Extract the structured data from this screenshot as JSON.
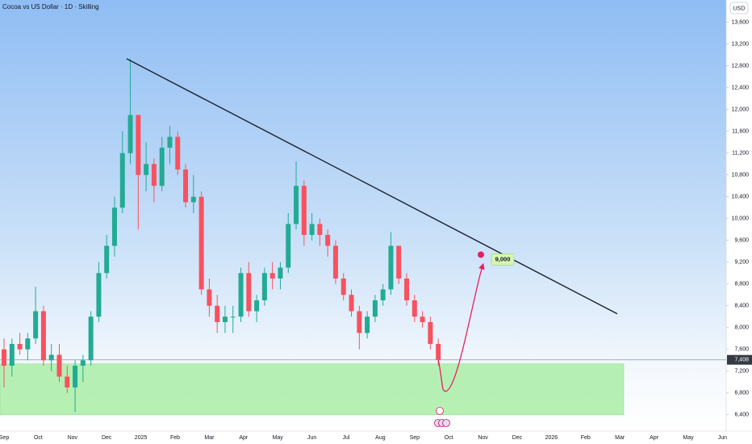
{
  "chart_data": {
    "type": "candlestick",
    "title": "Cocoa vs US Dollar · 1D · Skilling",
    "currency": "USD",
    "x_axis_labels": [
      "Sep",
      "Oct",
      "Nov",
      "Dec",
      "2025",
      "Feb",
      "Mar",
      "Apr",
      "May",
      "Jun",
      "Jul",
      "Aug",
      "Sep",
      "Oct",
      "Nov",
      "Dec",
      "2026",
      "Feb",
      "Mar",
      "Apr",
      "May",
      "Jun"
    ],
    "open": [
      7600,
      7300,
      7700,
      7600,
      7800,
      8300,
      7400,
      7500,
      7100,
      6900,
      7300,
      7400,
      8200,
      9000,
      9500,
      10200,
      11200,
      11900,
      10800,
      11000,
      10600,
      11300,
      11500,
      10900,
      10300,
      10400,
      8700,
      8400,
      8100,
      8200,
      8200,
      9000,
      8300,
      8500,
      9000,
      8900,
      9100,
      9900,
      10600,
      9700,
      9900,
      9700,
      9500,
      8900,
      8600,
      8300,
      7900,
      8200,
      8500,
      8700,
      9500,
      8900,
      8500,
      8200,
      8100,
      7700
    ],
    "high": [
      7800,
      7800,
      7900,
      7900,
      8750,
      8400,
      7700,
      7700,
      7300,
      7400,
      7500,
      8300,
      9200,
      9700,
      10400,
      11600,
      12930,
      11900,
      11400,
      11100,
      11500,
      11700,
      11600,
      11000,
      10800,
      10500,
      8900,
      8600,
      8400,
      8400,
      9100,
      9200,
      8600,
      9100,
      9200,
      9200,
      10100,
      11050,
      10700,
      10100,
      10000,
      9800,
      9600,
      9000,
      8700,
      8400,
      8300,
      8600,
      8800,
      9750,
      9500,
      9000,
      8600,
      8300,
      8200,
      7800
    ],
    "low": [
      6900,
      7100,
      7500,
      7400,
      7700,
      7300,
      7200,
      7000,
      6800,
      6450,
      7000,
      7300,
      8100,
      8900,
      9300,
      10100,
      11000,
      9800,
      10500,
      10300,
      10500,
      11000,
      10800,
      10200,
      10100,
      8600,
      8200,
      7900,
      7900,
      7900,
      8100,
      8200,
      8100,
      8400,
      8700,
      8700,
      9000,
      9800,
      9500,
      9600,
      9500,
      9300,
      8800,
      8500,
      8200,
      7600,
      7800,
      8100,
      8400,
      8600,
      8800,
      8400,
      8100,
      8000,
      7600,
      7300
    ],
    "close": [
      7300,
      7700,
      7600,
      7800,
      8300,
      7400,
      7500,
      7100,
      6900,
      7300,
      7400,
      8200,
      9000,
      9500,
      10200,
      11200,
      11900,
      10800,
      11000,
      10600,
      11300,
      11500,
      10900,
      10300,
      10400,
      8700,
      8400,
      8100,
      8200,
      8200,
      9000,
      8300,
      8500,
      9000,
      8900,
      9100,
      9900,
      10600,
      9700,
      9900,
      9700,
      9500,
      8900,
      8600,
      8300,
      7900,
      8200,
      8500,
      8700,
      9500,
      8900,
      8500,
      8200,
      8100,
      7700,
      7408
    ],
    "up_color": "#22ab94",
    "down_color": "#f7525f",
    "ylim": [
      6130,
      14010
    ],
    "yticks": [
      {
        "value": 6400,
        "label": "6,400"
      },
      {
        "value": 6800,
        "label": "6,800"
      },
      {
        "value": 7200,
        "label": "7,200"
      },
      {
        "value": 7600,
        "label": "7,600"
      },
      {
        "value": 8000,
        "label": "8,000"
      },
      {
        "value": 8400,
        "label": "8,400"
      },
      {
        "value": 8800,
        "label": "8,800"
      },
      {
        "value": 9200,
        "label": "9,200"
      },
      {
        "value": 9600,
        "label": "9,600"
      },
      {
        "value": 10000,
        "label": "10,000"
      },
      {
        "value": 10400,
        "label": "10,400"
      },
      {
        "value": 10800,
        "label": "10,800"
      },
      {
        "value": 11200,
        "label": "11,200"
      },
      {
        "value": 11600,
        "label": "11,600"
      },
      {
        "value": 12000,
        "label": "12,000"
      },
      {
        "value": 12400,
        "label": "12,400"
      },
      {
        "value": 12800,
        "label": "12,800"
      },
      {
        "value": 13200,
        "label": "13,200"
      },
      {
        "value": 13600,
        "label": "13,600"
      }
    ],
    "last_price": {
      "value": 7408,
      "label": "7,408"
    },
    "trendline": [
      12933,
      8252
    ],
    "zone": {
      "top": 7333,
      "bottom": 6400
    },
    "projection": [
      7408,
      6830,
      9130
    ],
    "target": {
      "value": 9000,
      "label": "9,000"
    }
  }
}
